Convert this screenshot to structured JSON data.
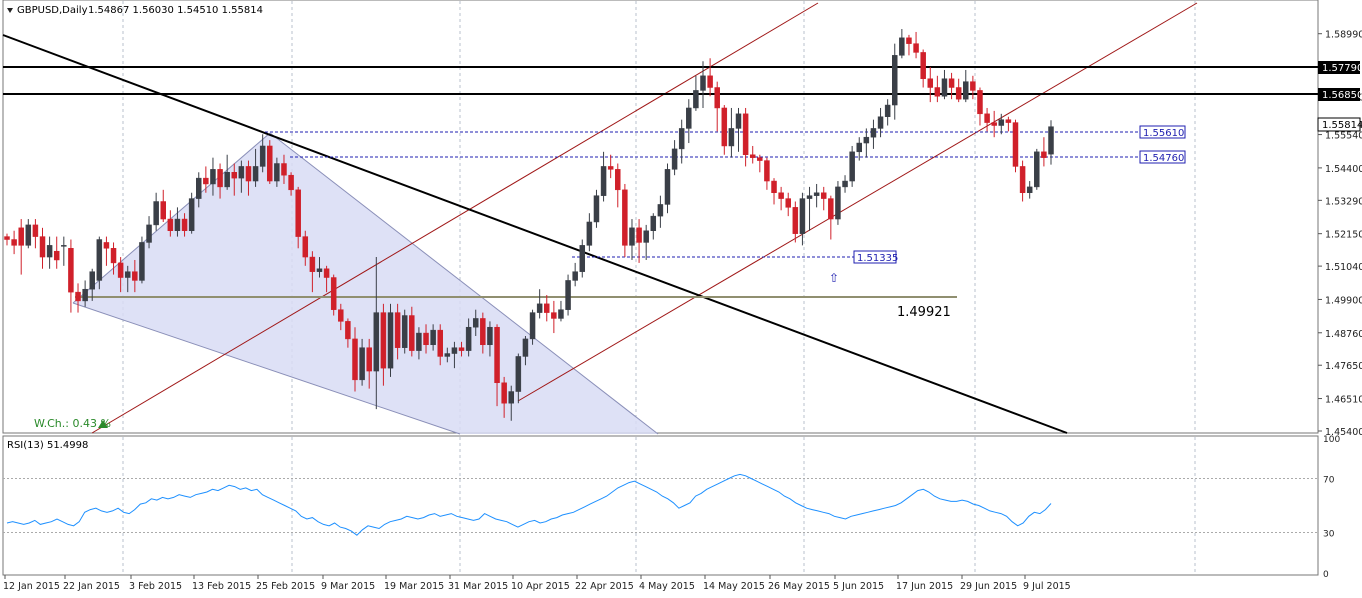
{
  "header": {
    "symbol": "GBPUSD,Daily",
    "ohlc": "1.54867 1.56030 1.54510 1.55814"
  },
  "colors": {
    "bull": "#3a3f47",
    "bear": "#d0202a",
    "grid": "#b8c2cc",
    "rsi_line": "#1e90ff",
    "channel": "#a01818",
    "triangle_fill": "#d8dcf4",
    "triangle_edge": "#8a8fb8",
    "hline": "#000000",
    "blue_dashed": "#1f1fb0",
    "support": "#908f70",
    "wch": "#2a8a2a"
  },
  "price_axis": {
    "min": 1.454,
    "max": 1.5898,
    "ticks": [
      "1.58990",
      "1.56850",
      "1.55540",
      "1.54400",
      "1.53290",
      "1.52150",
      "1.51040",
      "1.49900",
      "1.48760",
      "1.47650",
      "1.46510",
      "1.45400"
    ]
  },
  "date_axis": {
    "labels": [
      "12 Jan 2015",
      "22 Jan 2015",
      "3 Feb 2015",
      "13 Feb 2015",
      "25 Feb 2015",
      "9 Mar 2015",
      "19 Mar 2015",
      "31 Mar 2015",
      "10 Apr 2015",
      "22 Apr 2015",
      "4 May 2015",
      "14 May 2015",
      "26 May 2015",
      "5 Jun 2015",
      "17 Jun 2015",
      "29 Jun 2015",
      "9 Jul 2015"
    ]
  },
  "levels": {
    "res1": "1.57790",
    "res2": "1.56850",
    "current": "1.55814",
    "lvl1": "1.55610",
    "lvl2": "1.54760",
    "lvl3": "1.51335",
    "support_label": "1.49921"
  },
  "wch": "W.Ch.: 0.43 %",
  "rsi": {
    "label": "RSI(13) 51.4998",
    "ticks": [
      "100",
      "70",
      "30",
      "0"
    ]
  },
  "chart_data": {
    "type": "candlestick",
    "title": "GBPUSD,Daily",
    "y_range": [
      1.454,
      1.5898
    ],
    "candles": [
      [
        1.5205,
        1.5195,
        1.5215,
        1.5175
      ],
      [
        1.5195,
        1.5175,
        1.5225,
        1.5145
      ],
      [
        1.5235,
        1.5175,
        1.5265,
        1.5075
      ],
      [
        1.5175,
        1.5245,
        1.5265,
        1.5165
      ],
      [
        1.5245,
        1.5205,
        1.5265,
        1.5165
      ],
      [
        1.5205,
        1.5135,
        1.5235,
        1.5095
      ],
      [
        1.5135,
        1.5175,
        1.5205,
        1.5095
      ],
      [
        1.5155,
        1.5125,
        1.5205,
        1.5095
      ],
      [
        1.5175,
        1.5175,
        1.5205,
        1.5105
      ],
      [
        1.5165,
        1.5015,
        1.5195,
        1.4945
      ],
      [
        1.5015,
        1.4985,
        1.5045,
        1.4945
      ],
      [
        1.4985,
        1.5025,
        1.5055,
        1.4965
      ],
      [
        1.5025,
        1.5085,
        1.5095,
        1.4985
      ],
      [
        1.5055,
        1.5195,
        1.5205,
        1.5025
      ],
      [
        1.5185,
        1.5165,
        1.5205,
        1.5105
      ],
      [
        1.5165,
        1.5115,
        1.5185,
        1.5075
      ],
      [
        1.5115,
        1.5065,
        1.5135,
        1.5015
      ],
      [
        1.5065,
        1.5085,
        1.5105,
        1.5015
      ],
      [
        1.5085,
        1.5055,
        1.5125,
        1.5015
      ],
      [
        1.5055,
        1.5185,
        1.5205,
        1.5045
      ],
      [
        1.5185,
        1.5245,
        1.5275,
        1.5165
      ],
      [
        1.5245,
        1.5325,
        1.5355,
        1.5225
      ],
      [
        1.5325,
        1.5265,
        1.5365,
        1.5255
      ],
      [
        1.5265,
        1.5225,
        1.5295,
        1.5205
      ],
      [
        1.5225,
        1.5265,
        1.5305,
        1.5205
      ],
      [
        1.5265,
        1.5225,
        1.5285,
        1.5205
      ],
      [
        1.5225,
        1.5335,
        1.5355,
        1.5215
      ],
      [
        1.5335,
        1.5405,
        1.5425,
        1.5305
      ],
      [
        1.5405,
        1.5385,
        1.5445,
        1.5355
      ],
      [
        1.5385,
        1.5435,
        1.5475,
        1.5345
      ],
      [
        1.5435,
        1.5375,
        1.5455,
        1.5335
      ],
      [
        1.5375,
        1.5425,
        1.5485,
        1.5365
      ],
      [
        1.5425,
        1.5405,
        1.5455,
        1.5345
      ],
      [
        1.5405,
        1.5445,
        1.5465,
        1.5355
      ],
      [
        1.5445,
        1.5395,
        1.5465,
        1.5345
      ],
      [
        1.5395,
        1.5445,
        1.5505,
        1.5375
      ],
      [
        1.5445,
        1.5515,
        1.5555,
        1.5425
      ],
      [
        1.5515,
        1.5395,
        1.5535,
        1.5385
      ],
      [
        1.5395,
        1.5455,
        1.5475,
        1.5375
      ],
      [
        1.5455,
        1.5415,
        1.5485,
        1.5385
      ],
      [
        1.5415,
        1.5365,
        1.5425,
        1.5345
      ],
      [
        1.5365,
        1.5205,
        1.5375,
        1.5165
      ],
      [
        1.5205,
        1.5135,
        1.5225,
        1.5105
      ],
      [
        1.5135,
        1.5085,
        1.5155,
        1.5015
      ],
      [
        1.5085,
        1.5095,
        1.5135,
        1.5065
      ],
      [
        1.5095,
        1.5065,
        1.5105,
        1.5015
      ],
      [
        1.5065,
        1.4955,
        1.5075,
        1.4935
      ],
      [
        1.4955,
        1.4915,
        1.4975,
        1.4885
      ],
      [
        1.4915,
        1.4855,
        1.4925,
        1.4825
      ],
      [
        1.4855,
        1.4715,
        1.4895,
        1.4675
      ],
      [
        1.4715,
        1.4825,
        1.4855,
        1.4695
      ],
      [
        1.4825,
        1.4745,
        1.4855,
        1.4685
      ],
      [
        1.4745,
        1.4945,
        1.5135,
        1.4615
      ],
      [
        1.4945,
        1.4755,
        1.4975,
        1.4695
      ],
      [
        1.4755,
        1.4945,
        1.4975,
        1.4725
      ],
      [
        1.4945,
        1.4825,
        1.4975,
        1.4785
      ],
      [
        1.4825,
        1.4935,
        1.4955,
        1.4805
      ],
      [
        1.4935,
        1.4815,
        1.4965,
        1.4795
      ],
      [
        1.4815,
        1.4875,
        1.4895,
        1.4785
      ],
      [
        1.4875,
        1.4835,
        1.4905,
        1.4805
      ],
      [
        1.4835,
        1.4885,
        1.4905,
        1.4815
      ],
      [
        1.4885,
        1.4795,
        1.4905,
        1.4765
      ],
      [
        1.4795,
        1.4805,
        1.4825,
        1.4775
      ],
      [
        1.4805,
        1.4825,
        1.4845,
        1.4755
      ],
      [
        1.4825,
        1.4815,
        1.4845,
        1.4795
      ],
      [
        1.4815,
        1.4895,
        1.4925,
        1.4795
      ],
      [
        1.4895,
        1.4925,
        1.4955,
        1.4865
      ],
      [
        1.4925,
        1.4835,
        1.4945,
        1.4805
      ],
      [
        1.4835,
        1.4895,
        1.4915,
        1.4795
      ],
      [
        1.4895,
        1.4705,
        1.4905,
        1.4625
      ],
      [
        1.4705,
        1.4635,
        1.4725,
        1.4585
      ],
      [
        1.4635,
        1.4675,
        1.4695,
        1.4575
      ],
      [
        1.4675,
        1.4795,
        1.4805,
        1.4635
      ],
      [
        1.4795,
        1.4855,
        1.4865,
        1.4765
      ],
      [
        1.4855,
        1.4945,
        1.4955,
        1.4835
      ],
      [
        1.4945,
        1.4975,
        1.5025,
        1.4925
      ],
      [
        1.4975,
        1.4945,
        1.5005,
        1.4915
      ],
      [
        1.4945,
        1.4925,
        1.4985,
        1.4875
      ],
      [
        1.4925,
        1.4955,
        1.4985,
        1.4915
      ],
      [
        1.4955,
        1.5055,
        1.5075,
        1.4935
      ],
      [
        1.5055,
        1.5085,
        1.5115,
        1.5035
      ],
      [
        1.5085,
        1.5175,
        1.5195,
        1.5065
      ],
      [
        1.5175,
        1.5255,
        1.5285,
        1.5155
      ],
      [
        1.5255,
        1.5345,
        1.5365,
        1.5235
      ],
      [
        1.5345,
        1.5445,
        1.5495,
        1.5325
      ],
      [
        1.5445,
        1.5435,
        1.5485,
        1.5405
      ],
      [
        1.5435,
        1.5365,
        1.5455,
        1.5305
      ],
      [
        1.5365,
        1.5175,
        1.5385,
        1.5135
      ],
      [
        1.5175,
        1.5235,
        1.5265,
        1.5125
      ],
      [
        1.5235,
        1.5185,
        1.5265,
        1.5115
      ],
      [
        1.5185,
        1.5225,
        1.5245,
        1.5125
      ],
      [
        1.5225,
        1.5275,
        1.5285,
        1.5195
      ],
      [
        1.5275,
        1.5315,
        1.5345,
        1.5235
      ],
      [
        1.5315,
        1.5435,
        1.5455,
        1.5285
      ],
      [
        1.5435,
        1.5505,
        1.5535,
        1.5415
      ],
      [
        1.5505,
        1.5575,
        1.5605,
        1.5455
      ],
      [
        1.5575,
        1.5645,
        1.5675,
        1.5525
      ],
      [
        1.5645,
        1.5705,
        1.5755,
        1.5635
      ],
      [
        1.5705,
        1.5755,
        1.5805,
        1.5645
      ],
      [
        1.5755,
        1.5715,
        1.5815,
        1.5685
      ],
      [
        1.5715,
        1.5645,
        1.5735,
        1.5565
      ],
      [
        1.5645,
        1.5515,
        1.5655,
        1.5485
      ],
      [
        1.5515,
        1.5575,
        1.5645,
        1.5475
      ],
      [
        1.5575,
        1.5625,
        1.5645,
        1.5495
      ],
      [
        1.5625,
        1.5485,
        1.5645,
        1.5445
      ],
      [
        1.5485,
        1.5475,
        1.5515,
        1.5455
      ],
      [
        1.5475,
        1.5465,
        1.5485,
        1.5425
      ],
      [
        1.5465,
        1.5395,
        1.5475,
        1.5365
      ],
      [
        1.5395,
        1.5355,
        1.5405,
        1.5315
      ],
      [
        1.5355,
        1.5335,
        1.5375,
        1.5295
      ],
      [
        1.5335,
        1.5305,
        1.5355,
        1.5275
      ],
      [
        1.5305,
        1.5215,
        1.5325,
        1.5185
      ],
      [
        1.5215,
        1.5335,
        1.5355,
        1.5175
      ],
      [
        1.5335,
        1.5345,
        1.5375,
        1.5225
      ],
      [
        1.5345,
        1.5355,
        1.5385,
        1.5305
      ],
      [
        1.5355,
        1.5335,
        1.5375,
        1.5295
      ],
      [
        1.5335,
        1.5265,
        1.5345,
        1.5195
      ],
      [
        1.5265,
        1.5375,
        1.5395,
        1.5245
      ],
      [
        1.5375,
        1.5395,
        1.5415,
        1.5355
      ],
      [
        1.5395,
        1.5495,
        1.5515,
        1.5375
      ],
      [
        1.5495,
        1.5525,
        1.5545,
        1.5465
      ],
      [
        1.5525,
        1.5545,
        1.5575,
        1.5475
      ],
      [
        1.5545,
        1.5575,
        1.5605,
        1.5505
      ],
      [
        1.5575,
        1.5615,
        1.5645,
        1.5545
      ],
      [
        1.5615,
        1.5655,
        1.5675,
        1.5585
      ],
      [
        1.5655,
        1.5825,
        1.5865,
        1.5605
      ],
      [
        1.5825,
        1.5885,
        1.5915,
        1.5815
      ],
      [
        1.5885,
        1.5865,
        1.5895,
        1.5825
      ],
      [
        1.5865,
        1.5835,
        1.5905,
        1.5815
      ],
      [
        1.5835,
        1.5745,
        1.5845,
        1.5715
      ],
      [
        1.5745,
        1.5715,
        1.5785,
        1.5665
      ],
      [
        1.5715,
        1.5685,
        1.5755,
        1.5665
      ],
      [
        1.5685,
        1.5745,
        1.5775,
        1.5675
      ],
      [
        1.5745,
        1.5715,
        1.5765,
        1.5675
      ],
      [
        1.5715,
        1.5675,
        1.5745,
        1.5665
      ],
      [
        1.5675,
        1.5735,
        1.5775,
        1.5665
      ],
      [
        1.5735,
        1.5705,
        1.5755,
        1.5675
      ],
      [
        1.5705,
        1.5625,
        1.5715,
        1.5585
      ],
      [
        1.5625,
        1.5595,
        1.5645,
        1.5565
      ],
      [
        1.5595,
        1.5585,
        1.5635,
        1.5545
      ],
      [
        1.5585,
        1.5605,
        1.5625,
        1.5555
      ],
      [
        1.5605,
        1.5595,
        1.5615,
        1.5565
      ],
      [
        1.5595,
        1.5445,
        1.5605,
        1.5425
      ],
      [
        1.5445,
        1.5355,
        1.5465,
        1.5325
      ],
      [
        1.5355,
        1.5375,
        1.5395,
        1.5335
      ],
      [
        1.5375,
        1.5495,
        1.5505,
        1.5365
      ],
      [
        1.5495,
        1.5475,
        1.5545,
        1.5445
      ],
      [
        1.5487,
        1.5581,
        1.5603,
        1.5451
      ]
    ],
    "lines": {
      "res1": 1.5779,
      "res2": 1.5685,
      "lvl1": 1.5561,
      "lvl2": 1.5476,
      "lvl3": 1.51335,
      "support": 1.49921
    },
    "rsi": {
      "name": "RSI(13)",
      "y_range": [
        0,
        100
      ],
      "levels": [
        30,
        70
      ],
      "values": [
        37,
        38,
        37,
        36,
        37,
        39,
        36,
        37,
        38,
        40,
        38,
        36,
        35,
        38,
        45,
        47,
        48,
        46,
        45,
        46,
        48,
        45,
        44,
        47,
        51,
        52,
        55,
        54,
        56,
        55,
        56,
        58,
        57,
        56,
        58,
        59,
        60,
        62,
        61,
        63,
        65,
        64,
        62,
        63,
        61,
        62,
        58,
        56,
        54,
        52,
        50,
        48,
        46,
        42,
        40,
        41,
        38,
        36,
        35,
        37,
        34,
        33,
        31,
        28,
        32,
        35,
        34,
        33,
        36,
        38,
        39,
        40,
        42,
        41,
        40,
        41,
        43,
        44,
        42,
        43,
        44,
        42,
        41,
        40,
        39,
        40,
        44,
        42,
        40,
        39,
        38,
        36,
        34,
        36,
        38,
        39,
        37,
        38,
        40,
        41,
        43,
        44,
        45,
        47,
        49,
        51,
        53,
        55,
        57,
        60,
        63,
        65,
        67,
        68,
        66,
        64,
        62,
        60,
        57,
        55,
        52,
        48,
        50,
        52,
        57,
        59,
        62,
        64,
        66,
        68,
        70,
        72,
        73,
        72,
        70,
        68,
        66,
        64,
        62,
        60,
        57,
        55,
        52,
        50,
        48,
        47,
        46,
        45,
        44,
        42,
        41,
        40,
        42,
        43,
        44,
        45,
        46,
        47,
        48,
        49,
        50,
        52,
        55,
        58,
        61,
        62,
        60,
        57,
        55,
        54,
        53,
        53,
        54,
        53,
        51,
        50,
        48,
        46,
        45,
        44,
        42,
        38,
        35,
        37,
        42,
        45,
        44,
        47,
        51.4998
      ]
    }
  }
}
